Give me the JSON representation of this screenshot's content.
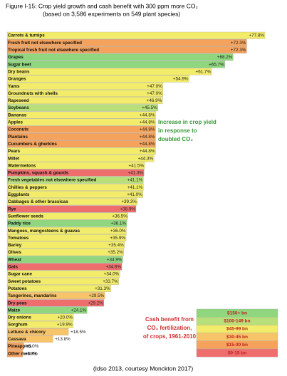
{
  "chart_data": {
    "type": "bar",
    "orientation": "horizontal",
    "title": "Figure I-15: Crop yield growth and cash benefit with 300 ppm more CO₂",
    "subtitle": "(based on 3,586 experiments on 549 plant species)",
    "categories": [
      "Carrots & turnips",
      "Fresh fruit not elsewhere specified",
      "Tropical fresh fruit not elsewhere specified",
      "Grapes",
      "Sugar beet",
      "Dry beans",
      "Oranges",
      "Yams",
      "Groundnuts with shells",
      "Rapeseed",
      "Soybeans",
      "Bananas",
      "Apples",
      "Coconuts",
      "Plantains",
      "Cucumbers & gherkins",
      "Pears",
      "Millet",
      "Watermelons",
      "Pumpkins, squash & gourds",
      "Fresh vegetables not elsewhere specified",
      "Chillies & peppers",
      "Eggplants",
      "Cabbages & other brassicas",
      "Rye",
      "Sunflower seeds",
      "Paddy rice",
      "Mangoes, mangosteens & guavas",
      "Tomatoes",
      "Barley",
      "Olives",
      "Wheat",
      "Oats",
      "Sugar cane",
      "Sweet potatoes",
      "Potatoes",
      "Tangerines, mandarins",
      "Dry peas",
      "Maize",
      "Dry onions",
      "Sorghum",
      "Lettuce & chicory",
      "Cassava",
      "Pineapples",
      "Other melons"
    ],
    "values": [
      77.8,
      72.3,
      72.3,
      68.2,
      65.7,
      61.7,
      54.9,
      47.0,
      47.0,
      46.9,
      45.5,
      44.8,
      44.8,
      44.8,
      44.8,
      44.8,
      44.8,
      44.3,
      41.5,
      41.3,
      41.1,
      41.1,
      41.0,
      39.3,
      38.9,
      36.5,
      36.1,
      36.0,
      35.9,
      35.4,
      35.2,
      34.9,
      34.6,
      34.0,
      33.7,
      31.3,
      29.5,
      29.2,
      24.1,
      20.0,
      19.9,
      18.5,
      13.8,
      5.0,
      4.7
    ],
    "value_labels": [
      "+77.8%",
      "+72.3%",
      "+72.3%",
      "+68.2%",
      "+65.7%",
      "+61.7%",
      "+54.9%",
      "+47.0%",
      "+47.0%",
      "+46.9%",
      "+45.5%",
      "+44.8%",
      "+44.8%",
      "+44.8%",
      "+44.8%",
      "+44.8%",
      "+44.8%",
      "+44.3%",
      "+41.5%",
      "+41.3%",
      "+41.1%",
      "+41.1%",
      "+41.0%",
      "+39.3%",
      "+38.9%",
      "+36.5%",
      "+36.1%",
      "+36.0%",
      "+35.9%",
      "+35.4%",
      "+35.2%",
      "+34.9%",
      "+34.6%",
      "+34.0%",
      "+33.7%",
      "+31.3%",
      "+29.5%",
      "+29.2%",
      "+24.1%",
      "+20.0%",
      "+19.9%",
      "+18.5%",
      "+13.8%",
      "+5.0%",
      "+4.7%"
    ],
    "colors": [
      "#f2ec6a",
      "#f4a25c",
      "#f4a25c",
      "#8fd67f",
      "#8fd67f",
      "#f2ec6a",
      "#f2ec6a",
      "#f2ec6a",
      "#f2ec6a",
      "#f2ec6a",
      "#b8e07a",
      "#f2ec6a",
      "#f2ec6a",
      "#f4a25c",
      "#f4a25c",
      "#f4a25c",
      "#f2ec6a",
      "#f2ec6a",
      "#f2ec6a",
      "#ee6e6e",
      "#b8e07a",
      "#f2ec6a",
      "#f2ec6a",
      "#f2ec6a",
      "#ee6e6e",
      "#f2ec6a",
      "#8fd67f",
      "#f2ec6a",
      "#f2ec6a",
      "#f2ec6a",
      "#f2ec6a",
      "#8fd67f",
      "#ee6e6e",
      "#f2ec6a",
      "#f2ec6a",
      "#f2ec6a",
      "#f7c46a",
      "#ee6e6e",
      "#8fd67f",
      "#f2ec6a",
      "#f2ec6a",
      "#f7c46a",
      "#f7c46a",
      "#f4a25c",
      "#f4a25c"
    ],
    "legend": [
      {
        "name": "$150+ bn",
        "color": "#8fd67f"
      },
      {
        "name": "$100-149 bn",
        "color": "#b8e07a"
      },
      {
        "name": "$45-99 bn",
        "color": "#f2ec6a"
      },
      {
        "name": "$30-45 bn",
        "color": "#f7c46a"
      },
      {
        "name": "$15-30 bn",
        "color": "#f4a25c"
      },
      {
        "name": "$0-15 bn",
        "color": "#ee6e6e"
      }
    ],
    "annotations": [
      "Increase in crop yield",
      "in response to",
      "doubled CO₂",
      "Cash benefit from",
      "CO₂ fertilization,",
      "of crops, 1961-2010"
    ],
    "source": "(Idso 2013, courtesy Monckton 2017)"
  }
}
